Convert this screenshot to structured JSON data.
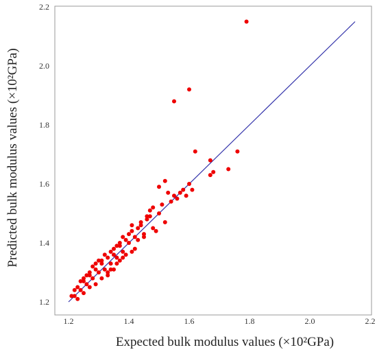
{
  "chart_data": {
    "type": "scatter",
    "title": "",
    "xlabel": "Expected bulk modulus values (×10²GPa)",
    "ylabel": "Predicted bulk modulus values (×10²GPa)",
    "xlim": [
      1.2,
      2.2
    ],
    "ylim": [
      1.2,
      2.2
    ],
    "x_ticks": [
      "1.2",
      "1.4",
      "1.6",
      "1.8",
      "2.0",
      "2.2"
    ],
    "y_ticks": [
      "1.2",
      "1.4",
      "1.6",
      "1.8",
      "2.0",
      "2.2"
    ],
    "grid": false,
    "colors": {
      "points": "#ee0000",
      "fit_line": "#3333aa",
      "frame": "#999999"
    },
    "fit_line": {
      "x": [
        1.2,
        2.15
      ],
      "y": [
        1.2,
        2.15
      ]
    },
    "series": [
      {
        "x": [
          1.79,
          1.6,
          1.55,
          1.76,
          1.62,
          1.67,
          1.73,
          1.68,
          1.67,
          1.52,
          1.5,
          1.6,
          1.58,
          1.55,
          1.57,
          1.56,
          1.54,
          1.53,
          1.61,
          1.59,
          1.47,
          1.46,
          1.48,
          1.45,
          1.52,
          1.51,
          1.44,
          1.5,
          1.49,
          1.47,
          1.43,
          1.42,
          1.41,
          1.4,
          1.39,
          1.38,
          1.37,
          1.36,
          1.35,
          1.34,
          1.33,
          1.32,
          1.31,
          1.3,
          1.29,
          1.28,
          1.27,
          1.26,
          1.25,
          1.24,
          1.23,
          1.22,
          1.21,
          1.42,
          1.41,
          1.38,
          1.36,
          1.34,
          1.33,
          1.31,
          1.29,
          1.27,
          1.25,
          1.23,
          1.4,
          1.37,
          1.35,
          1.32,
          1.3,
          1.28,
          1.26,
          1.24,
          1.22,
          1.44,
          1.46,
          1.48,
          1.33,
          1.35,
          1.37,
          1.39,
          1.31,
          1.29,
          1.27,
          1.25,
          1.43,
          1.45,
          1.41,
          1.36,
          1.34,
          1.38
        ],
        "y": [
          2.15,
          1.92,
          1.88,
          1.71,
          1.71,
          1.68,
          1.65,
          1.64,
          1.63,
          1.61,
          1.59,
          1.6,
          1.58,
          1.56,
          1.57,
          1.55,
          1.54,
          1.57,
          1.58,
          1.56,
          1.51,
          1.48,
          1.45,
          1.42,
          1.47,
          1.53,
          1.46,
          1.5,
          1.44,
          1.49,
          1.45,
          1.42,
          1.44,
          1.4,
          1.41,
          1.37,
          1.39,
          1.35,
          1.36,
          1.33,
          1.35,
          1.31,
          1.33,
          1.3,
          1.31,
          1.28,
          1.29,
          1.26,
          1.27,
          1.24,
          1.25,
          1.22,
          1.22,
          1.38,
          1.37,
          1.35,
          1.33,
          1.31,
          1.3,
          1.28,
          1.26,
          1.25,
          1.23,
          1.21,
          1.43,
          1.4,
          1.38,
          1.36,
          1.34,
          1.32,
          1.29,
          1.27,
          1.24,
          1.47,
          1.49,
          1.52,
          1.29,
          1.31,
          1.34,
          1.36,
          1.34,
          1.33,
          1.3,
          1.28,
          1.41,
          1.43,
          1.46,
          1.39,
          1.37,
          1.42
        ]
      }
    ]
  }
}
